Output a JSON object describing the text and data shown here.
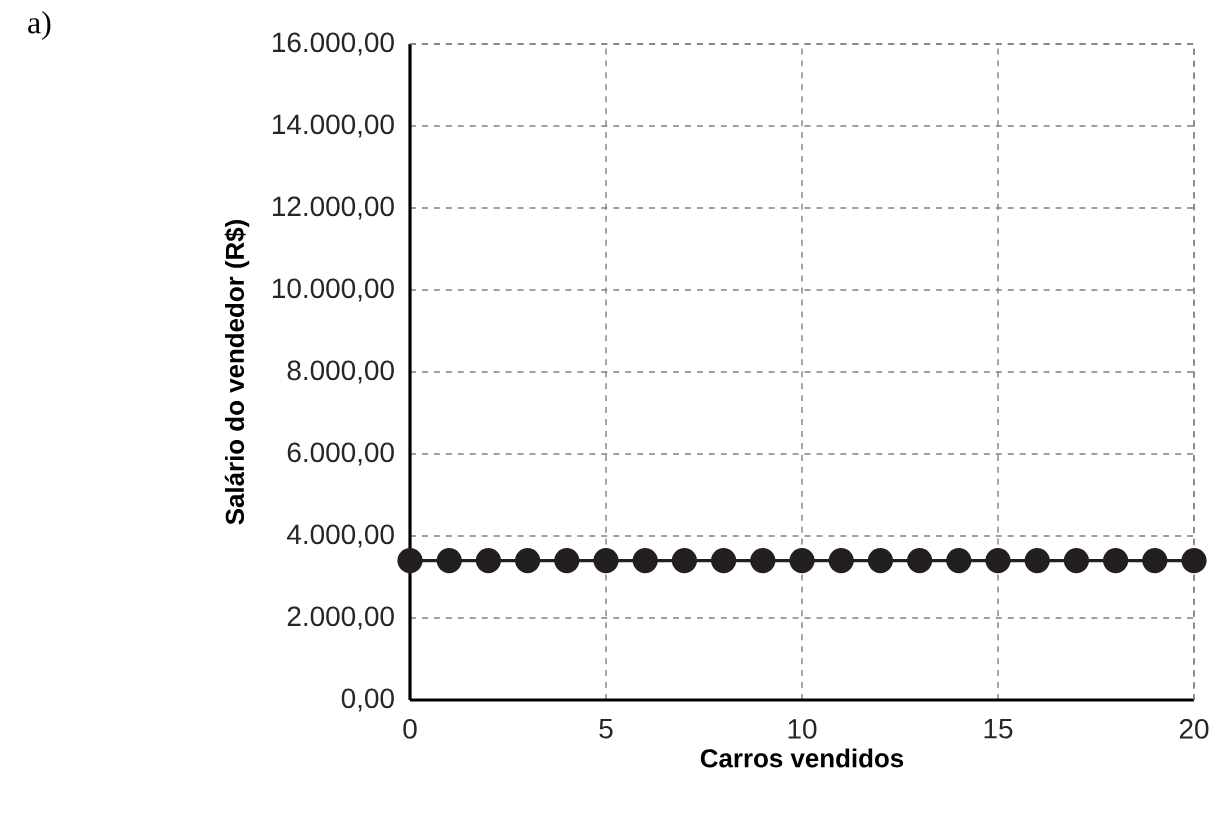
{
  "chart_data": {
    "type": "line",
    "xlabel": "Carros vendidos",
    "ylabel": "Salário do vendedor (R$)",
    "annotations": [
      "a)"
    ],
    "x": [
      0,
      1,
      2,
      3,
      4,
      5,
      6,
      7,
      8,
      9,
      10,
      11,
      12,
      13,
      14,
      15,
      16,
      17,
      18,
      19,
      20
    ],
    "series": [
      {
        "color": "#231f20",
        "values": [
          3400,
          3400,
          3400,
          3400,
          3400,
          3400,
          3400,
          3400,
          3400,
          3400,
          3400,
          3400,
          3400,
          3400,
          3400,
          3400,
          3400,
          3400,
          3400,
          3400,
          3400
        ]
      }
    ],
    "xlim": [
      0,
      20
    ],
    "xticks": [
      0,
      5,
      10,
      15,
      20
    ],
    "ylim": [
      0,
      16000
    ],
    "yticks": [
      {
        "value": 0,
        "label": "0,00"
      },
      {
        "value": 2000,
        "label": "2.000,00"
      },
      {
        "value": 4000,
        "label": "4.000,00"
      },
      {
        "value": 6000,
        "label": "6.000,00"
      },
      {
        "value": 8000,
        "label": "8.000,00"
      },
      {
        "value": 10000,
        "label": "10.000,00"
      },
      {
        "value": 12000,
        "label": "12.000,00"
      },
      {
        "value": 14000,
        "label": "14.000,00"
      },
      {
        "value": 16000,
        "label": "16.000,00"
      }
    ],
    "grid": true,
    "marker": "circle",
    "line_style": "solid"
  }
}
